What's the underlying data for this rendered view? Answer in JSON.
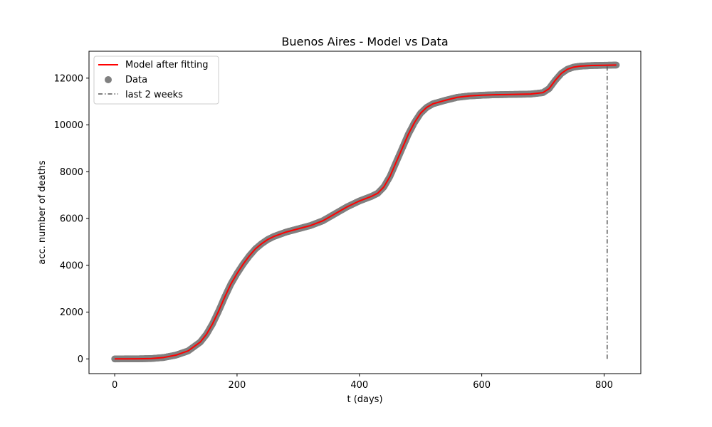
{
  "chart_data": {
    "type": "line",
    "title": "Buenos Aires - Model vs Data",
    "xlabel": "t (days)",
    "ylabel": "acc. number of deaths",
    "xlim": [
      -42,
      860
    ],
    "ylim": [
      -630,
      13150
    ],
    "xticks": [
      0,
      200,
      400,
      600,
      800
    ],
    "yticks": [
      0,
      2000,
      4000,
      6000,
      8000,
      10000,
      12000
    ],
    "grid": false,
    "legend_position": "top-left",
    "series": [
      {
        "name": "Model after fitting",
        "kind": "line",
        "color": "#ff0000",
        "points": [
          [
            0,
            0
          ],
          [
            20,
            2
          ],
          [
            40,
            5
          ],
          [
            60,
            15
          ],
          [
            80,
            60
          ],
          [
            100,
            160
          ],
          [
            120,
            340
          ],
          [
            140,
            720
          ],
          [
            150,
            1050
          ],
          [
            160,
            1500
          ],
          [
            170,
            2050
          ],
          [
            180,
            2650
          ],
          [
            190,
            3200
          ],
          [
            200,
            3650
          ],
          [
            210,
            4050
          ],
          [
            220,
            4400
          ],
          [
            230,
            4700
          ],
          [
            240,
            4920
          ],
          [
            250,
            5100
          ],
          [
            260,
            5230
          ],
          [
            280,
            5420
          ],
          [
            300,
            5560
          ],
          [
            320,
            5700
          ],
          [
            340,
            5900
          ],
          [
            360,
            6200
          ],
          [
            380,
            6500
          ],
          [
            400,
            6750
          ],
          [
            420,
            6950
          ],
          [
            430,
            7080
          ],
          [
            440,
            7350
          ],
          [
            450,
            7800
          ],
          [
            460,
            8400
          ],
          [
            470,
            9000
          ],
          [
            480,
            9600
          ],
          [
            490,
            10100
          ],
          [
            500,
            10500
          ],
          [
            510,
            10750
          ],
          [
            520,
            10900
          ],
          [
            540,
            11050
          ],
          [
            560,
            11180
          ],
          [
            580,
            11240
          ],
          [
            600,
            11270
          ],
          [
            620,
            11290
          ],
          [
            640,
            11300
          ],
          [
            660,
            11310
          ],
          [
            680,
            11320
          ],
          [
            700,
            11380
          ],
          [
            710,
            11550
          ],
          [
            720,
            11900
          ],
          [
            730,
            12200
          ],
          [
            740,
            12380
          ],
          [
            750,
            12470
          ],
          [
            760,
            12510
          ],
          [
            780,
            12540
          ],
          [
            800,
            12550
          ],
          [
            820,
            12560
          ]
        ]
      },
      {
        "name": "Data",
        "kind": "scatter",
        "color": "#808080"
      },
      {
        "name": "last 2 weeks",
        "kind": "vline",
        "color": "#555555",
        "x": 805,
        "y_range": [
          0,
          12560
        ]
      }
    ]
  }
}
